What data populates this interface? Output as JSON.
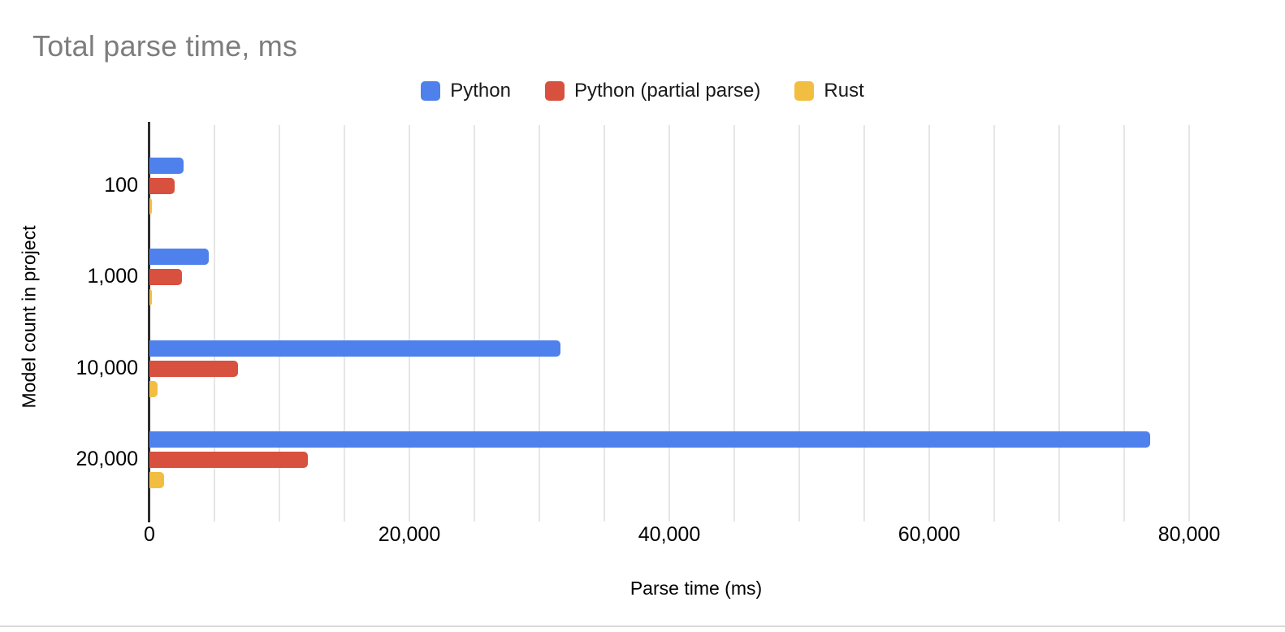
{
  "title": "Total parse time, ms",
  "colors": {
    "python": "#4f81ec",
    "python_partial": "#d8503e",
    "rust": "#f2be42",
    "grid": "#e6e6e6",
    "axis": "#2e2e2e",
    "title_text": "#7d7d7d"
  },
  "chart_data": {
    "type": "bar",
    "orientation": "horizontal",
    "title": "Total parse time, ms",
    "xlabel": "Parse time (ms)",
    "ylabel": "Model count in project",
    "categories": [
      "100",
      "1,000",
      "10,000",
      "20,000"
    ],
    "series": [
      {
        "name": "Python",
        "color": "#4f81ec",
        "values": [
          2600,
          4550,
          31650,
          77000
        ]
      },
      {
        "name": "Python (partial parse)",
        "color": "#d8503e",
        "values": [
          1950,
          2500,
          6800,
          12200
        ]
      },
      {
        "name": "Rust",
        "color": "#f2be42",
        "values": [
          150,
          170,
          640,
          1100
        ]
      }
    ],
    "xlim": [
      0,
      84000
    ],
    "x_ticks": [
      {
        "value": 0,
        "label": "0"
      },
      {
        "value": 20000,
        "label": "20,000"
      },
      {
        "value": 40000,
        "label": "40,000"
      },
      {
        "value": 60000,
        "label": "60,000"
      },
      {
        "value": 80000,
        "label": "80,000"
      }
    ],
    "gridline_interval": 5000,
    "grid": true,
    "legend_position": "top"
  }
}
